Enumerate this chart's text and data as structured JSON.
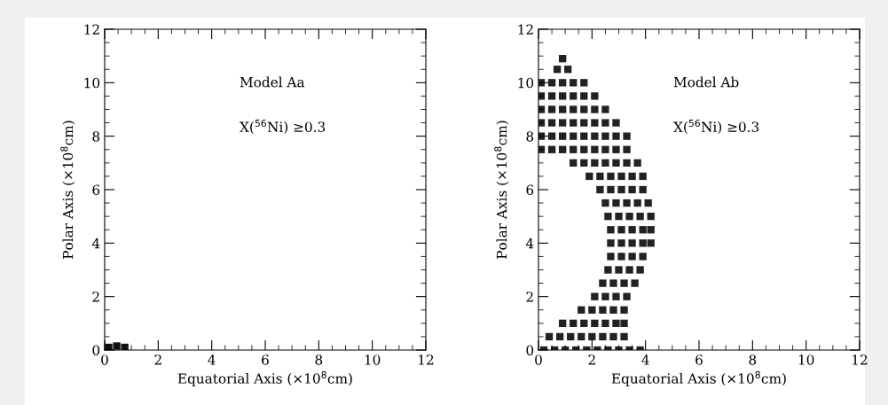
{
  "chart_data": [
    {
      "type": "scatter",
      "xlabel": "Equatorial Axis (×10$^{8}$cm)",
      "ylabel": "Polar Axis (×10$^{8}$cm)",
      "annotations": [
        "Model Aa",
        "X($^{56}$Ni) ≥0.3"
      ],
      "xlim": [
        0,
        12
      ],
      "ylim": [
        0,
        12
      ],
      "xticks": [
        0,
        2,
        4,
        6,
        8,
        10,
        12
      ],
      "yticks": [
        0,
        2,
        4,
        6,
        8,
        10,
        12
      ],
      "marker": "square",
      "grid": false,
      "series": [
        {
          "color": "#111111",
          "x": [
            0.15,
            0.45,
            0.75
          ],
          "values": [
            0.1,
            0.15,
            0.1
          ]
        }
      ]
    },
    {
      "type": "scatter",
      "xlabel": "Equatorial Axis (×10$^{8}$cm)",
      "ylabel": "Polar Axis (×10$^{8}$cm)",
      "annotations": [
        "Model Ab",
        "X($^{56}$Ni) ≥0.3"
      ],
      "xlim": [
        0,
        12
      ],
      "ylim": [
        0,
        12
      ],
      "xticks": [
        0,
        2,
        4,
        6,
        8,
        10,
        12
      ],
      "yticks": [
        0,
        2,
        4,
        6,
        8,
        10,
        12
      ],
      "marker": "square",
      "grid": false,
      "series": [
        {
          "color": "#222222",
          "x": [
            0.2,
            0.6,
            1.0,
            1.4,
            1.8,
            2.2,
            2.6,
            3.0,
            3.4,
            3.8,
            0.4,
            0.8,
            1.2,
            1.6,
            2.0,
            2.4,
            2.8,
            3.2,
            0.9,
            1.3,
            1.7,
            2.1,
            2.5,
            2.9,
            3.2,
            1.6,
            2.0,
            2.4,
            2.8,
            3.2,
            2.1,
            2.5,
            2.9,
            3.3,
            2.4,
            2.8,
            3.2,
            3.6,
            2.6,
            3.0,
            3.4,
            3.8,
            2.7,
            3.1,
            3.5,
            3.9,
            2.7,
            3.1,
            3.5,
            3.9,
            4.2,
            2.7,
            3.1,
            3.5,
            3.9,
            4.2,
            2.6,
            3.0,
            3.4,
            3.8,
            4.2,
            2.5,
            2.9,
            3.3,
            3.7,
            4.1,
            2.3,
            2.7,
            3.1,
            3.5,
            3.9,
            1.9,
            2.3,
            2.7,
            3.1,
            3.5,
            3.9,
            1.3,
            1.7,
            2.1,
            2.5,
            2.9,
            3.3,
            3.7,
            0.1,
            0.5,
            0.9,
            1.3,
            1.7,
            2.1,
            2.5,
            2.9,
            3.3,
            0.1,
            0.5,
            0.9,
            1.3,
            1.7,
            2.1,
            2.5,
            2.9,
            3.3,
            0.1,
            0.5,
            0.9,
            1.3,
            1.7,
            2.1,
            2.5,
            2.9,
            0.1,
            0.5,
            0.9,
            1.3,
            1.7,
            2.1,
            2.5,
            0.1,
            0.5,
            0.9,
            1.3,
            1.7,
            2.1,
            0.1,
            0.5,
            0.9,
            1.3,
            1.7,
            0.7,
            1.1,
            0.9
          ],
          "values": [
            0,
            0,
            0,
            0,
            0,
            0,
            0,
            0,
            0,
            0,
            0.5,
            0.5,
            0.5,
            0.5,
            0.5,
            0.5,
            0.5,
            0.5,
            1,
            1,
            1,
            1,
            1,
            1,
            1,
            1.5,
            1.5,
            1.5,
            1.5,
            1.5,
            2,
            2,
            2,
            2,
            2.5,
            2.5,
            2.5,
            2.5,
            3,
            3,
            3,
            3,
            3.5,
            3.5,
            3.5,
            3.5,
            4,
            4,
            4,
            4,
            4,
            4.5,
            4.5,
            4.5,
            4.5,
            4.5,
            5,
            5,
            5,
            5,
            5,
            5.5,
            5.5,
            5.5,
            5.5,
            5.5,
            6,
            6,
            6,
            6,
            6,
            6.5,
            6.5,
            6.5,
            6.5,
            6.5,
            6.5,
            7,
            7,
            7,
            7,
            7,
            7,
            7,
            7.5,
            7.5,
            7.5,
            7.5,
            7.5,
            7.5,
            7.5,
            7.5,
            7.5,
            8,
            8,
            8,
            8,
            8,
            8,
            8,
            8,
            8,
            8.5,
            8.5,
            8.5,
            8.5,
            8.5,
            8.5,
            8.5,
            8.5,
            9,
            9,
            9,
            9,
            9,
            9,
            9,
            9.5,
            9.5,
            9.5,
            9.5,
            9.5,
            9.5,
            10,
            10,
            10,
            10,
            10,
            10.5,
            10.5,
            10.9
          ]
        }
      ]
    }
  ]
}
